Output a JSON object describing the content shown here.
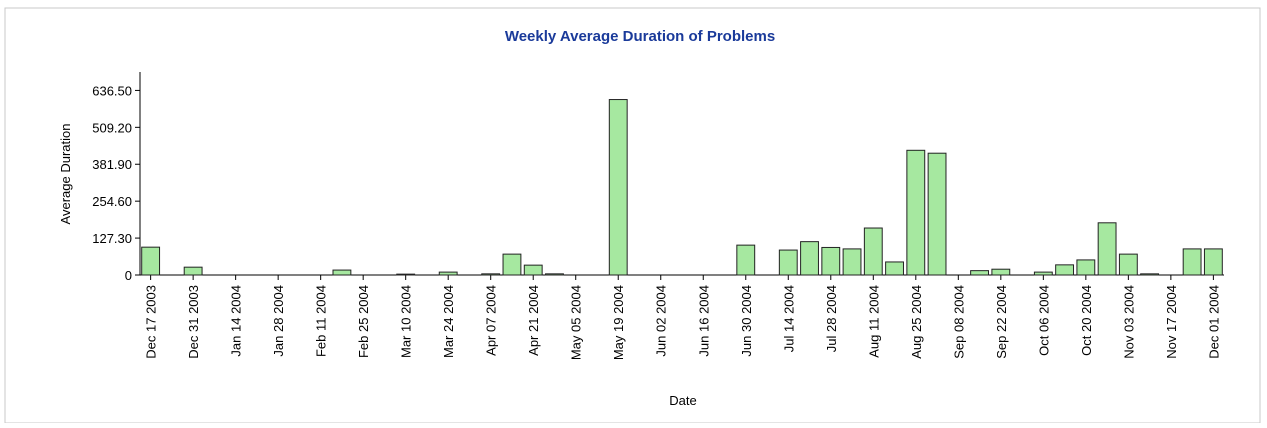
{
  "chart_data": {
    "type": "bar",
    "title": "Weekly Average Duration of Problems",
    "x_label": "Date",
    "y_label": "Average Duration",
    "categories": [
      "Dec 17 2003",
      null,
      "Dec 31 2003",
      null,
      "Jan 14 2004",
      null,
      "Jan 28 2004",
      null,
      "Feb 11 2004",
      null,
      "Feb 25 2004",
      null,
      "Mar 10 2004",
      null,
      "Mar 24 2004",
      null,
      "Apr 07 2004",
      null,
      "Apr 21 2004",
      null,
      "May 05 2004",
      null,
      "May 19 2004",
      null,
      "Jun 02 2004",
      null,
      "Jun 16 2004",
      null,
      "Jun 30 2004",
      null,
      "Jul 14 2004",
      null,
      "Jul 28 2004",
      null,
      "Aug 11 2004",
      null,
      "Aug 25 2004",
      null,
      "Sep 08 2004",
      null,
      "Sep 22 2004",
      null,
      "Oct 06 2004",
      null,
      "Oct 20 2004",
      null,
      "Nov 03 2004",
      null,
      "Nov 17 2004",
      null,
      "Dec 01 2004"
    ],
    "values": [
      96,
      0,
      27,
      0,
      0,
      0,
      0,
      0,
      0,
      17,
      0,
      0,
      3,
      0,
      10,
      0,
      4,
      72,
      34,
      4,
      0,
      0,
      605,
      0,
      0,
      0,
      0,
      0,
      103,
      0,
      86,
      115,
      95,
      90,
      162,
      45,
      430,
      420,
      0,
      15,
      20,
      0,
      10,
      35,
      52,
      180,
      72,
      4,
      0,
      90,
      90
    ],
    "color": "#a6e8a0",
    "ylim": [
      0,
      700
    ],
    "yticks": [
      0,
      {
        "value": 127.3,
        "label": "127.30"
      },
      {
        "value": 254.6,
        "label": "254.60"
      },
      {
        "value": 381.9,
        "label": "381.90"
      },
      {
        "value": 509.2,
        "label": "509.20"
      },
      {
        "value": 636.5,
        "label": "636.50"
      }
    ],
    "grid": false
  }
}
